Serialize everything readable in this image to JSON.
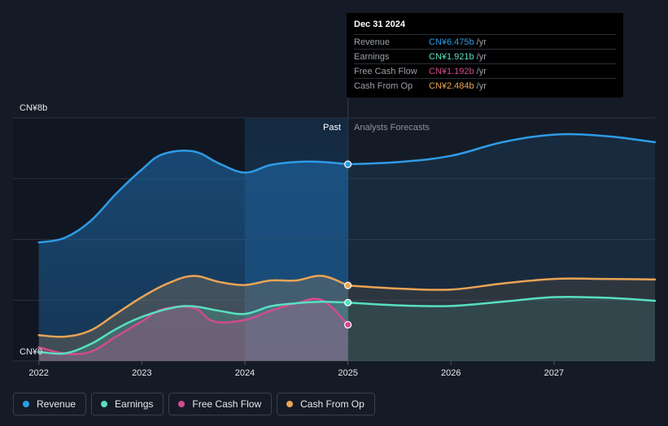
{
  "chart_data": {
    "type": "area",
    "y_axis": {
      "top_label": "CN¥8b",
      "bottom_label": "CN¥0",
      "ylim": [
        0,
        8
      ]
    },
    "x_ticks": [
      "2022",
      "2023",
      "2024",
      "2025",
      "2026",
      "2027"
    ],
    "x_range": [
      2021.75,
      2027.98
    ],
    "past_label": "Past",
    "forecast_label": "Analysts Forecasts",
    "divider_x": 2025.0,
    "highlight_start_x": 2024.0,
    "series": [
      {
        "key": "revenue",
        "name": "Revenue",
        "color": "#2f9be6",
        "past": [
          [
            2022.0,
            3.9
          ],
          [
            2022.25,
            4.05
          ],
          [
            2022.5,
            4.6
          ],
          [
            2022.75,
            5.5
          ],
          [
            2023.0,
            6.3
          ],
          [
            2023.2,
            6.8
          ],
          [
            2023.5,
            6.9
          ],
          [
            2023.75,
            6.5
          ],
          [
            2024.0,
            6.2
          ],
          [
            2024.25,
            6.45
          ],
          [
            2024.5,
            6.55
          ],
          [
            2024.75,
            6.55
          ],
          [
            2025.0,
            6.475
          ]
        ],
        "forecast": [
          [
            2025.0,
            6.475
          ],
          [
            2025.5,
            6.55
          ],
          [
            2026.0,
            6.75
          ],
          [
            2026.5,
            7.2
          ],
          [
            2027.0,
            7.45
          ],
          [
            2027.5,
            7.4
          ],
          [
            2027.98,
            7.2
          ]
        ]
      },
      {
        "key": "earnings",
        "name": "Earnings",
        "color": "#58e0c0",
        "past": [
          [
            2022.0,
            0.3
          ],
          [
            2022.25,
            0.25
          ],
          [
            2022.5,
            0.55
          ],
          [
            2022.75,
            1.05
          ],
          [
            2023.0,
            1.45
          ],
          [
            2023.3,
            1.75
          ],
          [
            2023.5,
            1.8
          ],
          [
            2023.75,
            1.65
          ],
          [
            2024.0,
            1.55
          ],
          [
            2024.25,
            1.8
          ],
          [
            2024.5,
            1.9
          ],
          [
            2024.75,
            1.95
          ],
          [
            2025.0,
            1.921
          ]
        ],
        "forecast": [
          [
            2025.0,
            1.921
          ],
          [
            2025.5,
            1.83
          ],
          [
            2026.0,
            1.81
          ],
          [
            2026.5,
            1.95
          ],
          [
            2027.0,
            2.1
          ],
          [
            2027.5,
            2.08
          ],
          [
            2027.98,
            1.98
          ]
        ]
      },
      {
        "key": "free_cash_flow",
        "name": "Free Cash Flow",
        "color": "#d14b8f",
        "past": [
          [
            2022.0,
            0.45
          ],
          [
            2022.25,
            0.25
          ],
          [
            2022.5,
            0.3
          ],
          [
            2022.75,
            0.8
          ],
          [
            2023.0,
            1.3
          ],
          [
            2023.2,
            1.7
          ],
          [
            2023.5,
            1.75
          ],
          [
            2023.7,
            1.3
          ],
          [
            2024.0,
            1.35
          ],
          [
            2024.25,
            1.65
          ],
          [
            2024.5,
            1.9
          ],
          [
            2024.75,
            2.0
          ],
          [
            2025.0,
            1.192
          ]
        ],
        "forecast": []
      },
      {
        "key": "cash_from_op",
        "name": "Cash From Op",
        "color": "#e9a455",
        "past": [
          [
            2022.0,
            0.85
          ],
          [
            2022.25,
            0.8
          ],
          [
            2022.5,
            1.0
          ],
          [
            2022.75,
            1.55
          ],
          [
            2023.0,
            2.1
          ],
          [
            2023.25,
            2.55
          ],
          [
            2023.5,
            2.8
          ],
          [
            2023.75,
            2.6
          ],
          [
            2024.0,
            2.5
          ],
          [
            2024.25,
            2.65
          ],
          [
            2024.5,
            2.65
          ],
          [
            2024.75,
            2.8
          ],
          [
            2025.0,
            2.484
          ]
        ],
        "forecast": [
          [
            2025.0,
            2.484
          ],
          [
            2025.5,
            2.38
          ],
          [
            2026.0,
            2.35
          ],
          [
            2026.5,
            2.55
          ],
          [
            2027.0,
            2.7
          ],
          [
            2027.5,
            2.7
          ],
          [
            2027.98,
            2.68
          ]
        ]
      }
    ]
  },
  "tooltip": {
    "date": "Dec 31 2024",
    "rows": [
      {
        "label": "Revenue",
        "value": "CN¥6.475b",
        "unit": "/yr",
        "color": "#2f9be6"
      },
      {
        "label": "Earnings",
        "value": "CN¥1.921b",
        "unit": "/yr",
        "color": "#58e0c0"
      },
      {
        "label": "Free Cash Flow",
        "value": "CN¥1.192b",
        "unit": "/yr",
        "color": "#d14b8f"
      },
      {
        "label": "Cash From Op",
        "value": "CN¥2.484b",
        "unit": "/yr",
        "color": "#e9a455"
      }
    ]
  },
  "legend": [
    {
      "label": "Revenue",
      "color": "#2f9be6"
    },
    {
      "label": "Earnings",
      "color": "#58e0c0"
    },
    {
      "label": "Free Cash Flow",
      "color": "#d14b8f"
    },
    {
      "label": "Cash From Op",
      "color": "#e9a455"
    }
  ]
}
